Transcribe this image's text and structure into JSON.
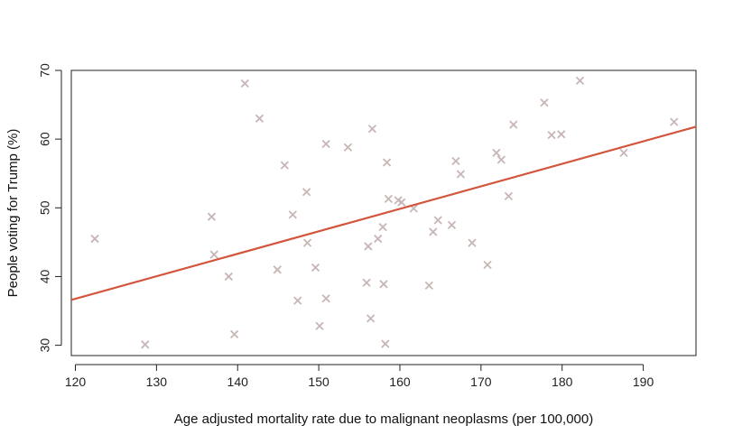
{
  "chart_data": {
    "type": "scatter",
    "title": "",
    "xlabel": "Age adjusted mortality rate due to malignant neoplasms (per 100,000)",
    "ylabel": "People voting for Trump (%)",
    "xlim": [
      119.5,
      196.5
    ],
    "ylim": [
      28.5,
      70
    ],
    "xticks": [
      "120",
      "130",
      "140",
      "150",
      "160",
      "170",
      "180",
      "190"
    ],
    "yticks": [
      "30",
      "40",
      "50",
      "60",
      "70"
    ],
    "grid": false,
    "marker": "x",
    "point_color": "#c8b6b6",
    "line_color": "#d2553c",
    "points": [
      [
        122.4,
        45.5
      ],
      [
        128.6,
        30.1
      ],
      [
        136.8,
        48.7
      ],
      [
        137.1,
        43.2
      ],
      [
        138.9,
        40.0
      ],
      [
        139.6,
        31.6
      ],
      [
        140.9,
        68.1
      ],
      [
        142.7,
        63.0
      ],
      [
        144.9,
        41.0
      ],
      [
        145.8,
        56.2
      ],
      [
        146.8,
        49.0
      ],
      [
        147.4,
        36.5
      ],
      [
        148.5,
        52.3
      ],
      [
        148.6,
        44.9
      ],
      [
        149.6,
        41.3
      ],
      [
        150.1,
        32.8
      ],
      [
        150.9,
        59.3
      ],
      [
        150.9,
        36.8
      ],
      [
        153.6,
        58.8
      ],
      [
        155.9,
        39.1
      ],
      [
        156.1,
        44.4
      ],
      [
        156.4,
        33.9
      ],
      [
        156.6,
        61.5
      ],
      [
        157.3,
        45.5
      ],
      [
        157.9,
        47.2
      ],
      [
        158.0,
        38.9
      ],
      [
        158.2,
        30.2
      ],
      [
        158.4,
        56.6
      ],
      [
        158.6,
        51.3
      ],
      [
        159.8,
        51.1
      ],
      [
        160.2,
        50.8
      ],
      [
        161.7,
        49.9
      ],
      [
        163.6,
        38.7
      ],
      [
        164.1,
        46.5
      ],
      [
        164.7,
        48.2
      ],
      [
        166.4,
        47.5
      ],
      [
        166.9,
        56.8
      ],
      [
        167.5,
        54.9
      ],
      [
        168.9,
        44.9
      ],
      [
        170.8,
        41.7
      ],
      [
        171.9,
        58.0
      ],
      [
        172.5,
        57.0
      ],
      [
        173.4,
        51.7
      ],
      [
        174.0,
        62.1
      ],
      [
        177.8,
        65.3
      ],
      [
        178.7,
        60.6
      ],
      [
        179.9,
        60.7
      ],
      [
        182.2,
        68.5
      ],
      [
        187.6,
        58.0
      ],
      [
        193.8,
        62.5
      ]
    ],
    "regression_line": {
      "x": [
        119.5,
        196.5
      ],
      "y": [
        36.6,
        61.8
      ]
    }
  }
}
